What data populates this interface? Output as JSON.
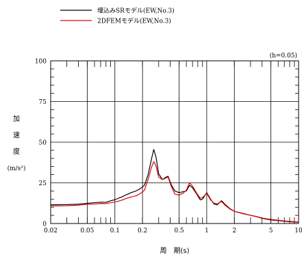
{
  "chart_data": {
    "type": "line",
    "x_scale": "log",
    "xlim": [
      0.02,
      10
    ],
    "ylim": [
      0,
      100
    ],
    "xlabel": "周　期(s)",
    "ylabel_chars": [
      "加",
      "速",
      "度"
    ],
    "ylabel_unit": "(m/s²)",
    "annotation": "(h=0.05)",
    "x_tick_labels": [
      {
        "value": 0.02,
        "label": "0.02"
      },
      {
        "value": 0.05,
        "label": "0.05"
      },
      {
        "value": 0.1,
        "label": "0.1"
      },
      {
        "value": 0.2,
        "label": "0.2"
      },
      {
        "value": 0.5,
        "label": "0.5"
      },
      {
        "value": 1,
        "label": "1"
      },
      {
        "value": 2,
        "label": "2"
      },
      {
        "value": 5,
        "label": "5"
      },
      {
        "value": 10,
        "label": "10"
      }
    ],
    "y_tick_labels": [
      {
        "value": 0,
        "label": "0"
      },
      {
        "value": 25,
        "label": "25"
      },
      {
        "value": 50,
        "label": "50"
      },
      {
        "value": 75,
        "label": "75"
      },
      {
        "value": 100,
        "label": "100"
      }
    ],
    "legend_position": "top-left",
    "grid": true,
    "series": [
      {
        "name": "埋込みSRモデル(EW,No.3)",
        "color": "#000000",
        "points": [
          [
            0.02,
            11.5
          ],
          [
            0.03,
            11.6
          ],
          [
            0.04,
            11.9
          ],
          [
            0.05,
            12.4
          ],
          [
            0.06,
            12.8
          ],
          [
            0.07,
            13.1
          ],
          [
            0.08,
            13.0
          ],
          [
            0.09,
            14.0
          ],
          [
            0.1,
            14.6
          ],
          [
            0.11,
            15.6
          ],
          [
            0.12,
            16.4
          ],
          [
            0.13,
            17.4
          ],
          [
            0.15,
            19.0
          ],
          [
            0.17,
            20.0
          ],
          [
            0.19,
            21.5
          ],
          [
            0.21,
            23.5
          ],
          [
            0.23,
            30.0
          ],
          [
            0.25,
            39.5
          ],
          [
            0.265,
            45.5
          ],
          [
            0.28,
            41.0
          ],
          [
            0.3,
            30.5
          ],
          [
            0.33,
            27.0
          ],
          [
            0.36,
            28.5
          ],
          [
            0.38,
            29.0
          ],
          [
            0.41,
            24.0
          ],
          [
            0.45,
            20.0
          ],
          [
            0.5,
            19.0
          ],
          [
            0.55,
            19.5
          ],
          [
            0.6,
            20.0
          ],
          [
            0.65,
            23.5
          ],
          [
            0.7,
            22.0
          ],
          [
            0.78,
            18.0
          ],
          [
            0.85,
            14.5
          ],
          [
            0.9,
            15.0
          ],
          [
            1.0,
            19.0
          ],
          [
            1.1,
            15.0
          ],
          [
            1.2,
            12.0
          ],
          [
            1.3,
            11.5
          ],
          [
            1.45,
            14.0
          ],
          [
            1.6,
            11.5
          ],
          [
            1.8,
            9.0
          ],
          [
            2.0,
            7.5
          ],
          [
            2.5,
            6.0
          ],
          [
            3.0,
            5.0
          ],
          [
            3.5,
            4.2
          ],
          [
            4.0,
            3.2
          ],
          [
            5.0,
            2.2
          ],
          [
            6.0,
            1.8
          ],
          [
            7.0,
            1.4
          ],
          [
            8.5,
            1.0
          ],
          [
            10.0,
            0.8
          ]
        ]
      },
      {
        "name": "2DFEMモデル(EW,No.3)",
        "color": "#e00000",
        "points": [
          [
            0.02,
            10.8
          ],
          [
            0.03,
            10.9
          ],
          [
            0.04,
            11.3
          ],
          [
            0.05,
            11.8
          ],
          [
            0.06,
            12.0
          ],
          [
            0.07,
            12.3
          ],
          [
            0.08,
            12.2
          ],
          [
            0.09,
            12.8
          ],
          [
            0.1,
            13.2
          ],
          [
            0.11,
            13.8
          ],
          [
            0.12,
            14.4
          ],
          [
            0.13,
            15.2
          ],
          [
            0.15,
            16.3
          ],
          [
            0.17,
            17.0
          ],
          [
            0.19,
            18.5
          ],
          [
            0.21,
            20.5
          ],
          [
            0.23,
            27.0
          ],
          [
            0.25,
            34.5
          ],
          [
            0.265,
            38.0
          ],
          [
            0.28,
            35.5
          ],
          [
            0.3,
            28.5
          ],
          [
            0.33,
            27.0
          ],
          [
            0.36,
            28.0
          ],
          [
            0.38,
            28.5
          ],
          [
            0.41,
            23.0
          ],
          [
            0.45,
            18.0
          ],
          [
            0.5,
            17.5
          ],
          [
            0.55,
            18.5
          ],
          [
            0.6,
            20.5
          ],
          [
            0.65,
            25.0
          ],
          [
            0.7,
            23.0
          ],
          [
            0.78,
            18.5
          ],
          [
            0.85,
            15.5
          ],
          [
            0.9,
            16.0
          ],
          [
            1.0,
            18.5
          ],
          [
            1.1,
            14.5
          ],
          [
            1.2,
            12.5
          ],
          [
            1.3,
            12.0
          ],
          [
            1.45,
            13.5
          ],
          [
            1.6,
            11.0
          ],
          [
            1.8,
            8.8
          ],
          [
            2.0,
            7.5
          ],
          [
            2.5,
            6.2
          ],
          [
            3.0,
            5.0
          ],
          [
            3.5,
            4.3
          ],
          [
            4.0,
            3.4
          ],
          [
            5.0,
            2.5
          ],
          [
            6.0,
            2.0
          ],
          [
            7.0,
            1.6
          ],
          [
            8.5,
            1.2
          ],
          [
            10.0,
            0.9
          ]
        ]
      }
    ]
  }
}
